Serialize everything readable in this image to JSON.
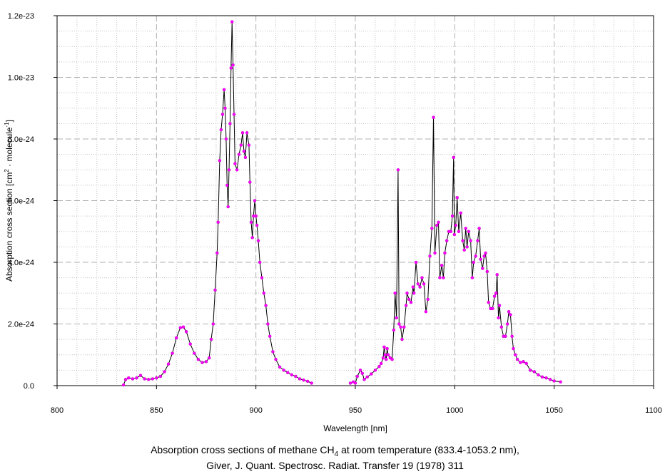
{
  "chart_data": {
    "type": "line",
    "xlabel": "Wavelength [nm]",
    "ylabel": "Absorption cross section [cm",
    "ylabel_sup1": "2",
    "ylabel_mid": " · molecule",
    "ylabel_sup2": "-1",
    "ylabel_end": "]",
    "xlim": [
      800,
      1100
    ],
    "ylim": [
      0,
      1.2e-23
    ],
    "xticks": [
      "800",
      "850",
      "900",
      "950",
      "1000",
      "1050",
      "1100"
    ],
    "yticks": [
      "0.0",
      "2.0e-24",
      "4.0e-24",
      "6.0e-24",
      "8.0e-24",
      "1.0e-23",
      "1.2e-23"
    ],
    "grid": true,
    "line_color": "#000000",
    "marker_color": "#ff00ff",
    "series": [
      {
        "segments": [
          [
            [
              833.4,
              2e-26
            ],
            [
              834.5,
              2e-25
            ],
            [
              836,
              2.5e-25
            ],
            [
              838,
              2.2e-25
            ],
            [
              840,
              2.5e-25
            ],
            [
              842,
              3.3e-25
            ],
            [
              844,
              2.2e-25
            ],
            [
              846,
              2e-25
            ],
            [
              848,
              2.2e-25
            ],
            [
              850,
              2.5e-25
            ],
            [
              852,
              3e-25
            ],
            [
              854,
              4.5e-25
            ],
            [
              856,
              7e-25
            ],
            [
              858,
              1.05e-24
            ],
            [
              860,
              1.55e-24
            ],
            [
              862,
              1.88e-24
            ],
            [
              863.5,
              1.9e-24
            ],
            [
              865,
              1.75e-24
            ],
            [
              867,
              1.35e-24
            ],
            [
              869,
              1.05e-24
            ],
            [
              871,
              8.5e-25
            ],
            [
              873,
              7.5e-25
            ],
            [
              875,
              7.8e-25
            ],
            [
              876.5,
              9e-25
            ],
            [
              877.5,
              1.5e-24
            ],
            [
              878.5,
              2e-24
            ],
            [
              879.5,
              3.1e-24
            ],
            [
              880.5,
              4.3e-24
            ],
            [
              881,
              5.3e-24
            ],
            [
              881.8,
              7.3e-24
            ],
            [
              882.5,
              8.3e-24
            ],
            [
              883.2,
              8.8e-24
            ],
            [
              884,
              9.6e-24
            ],
            [
              884.5,
              9e-24
            ],
            [
              885,
              8e-24
            ],
            [
              885.5,
              6.5e-24
            ],
            [
              886,
              5.8e-24
            ],
            [
              886.5,
              7e-24
            ],
            [
              887,
              8.5e-24
            ],
            [
              887.5,
              1.03e-23
            ],
            [
              888,
              1.18e-23
            ],
            [
              888.5,
              1.04e-23
            ],
            [
              889,
              8.8e-24
            ],
            [
              889.5,
              7.2e-24
            ],
            [
              890.5,
              7e-24
            ],
            [
              891.5,
              7.5e-24
            ],
            [
              892.5,
              7.8e-24
            ],
            [
              893.3,
              8.2e-24
            ],
            [
              894,
              7.6e-24
            ],
            [
              894.7,
              7.4e-24
            ],
            [
              895.5,
              8.2e-24
            ],
            [
              896.5,
              7.8e-24
            ],
            [
              897,
              6.6e-24
            ],
            [
              897.6,
              5.3e-24
            ],
            [
              898.2,
              4.8e-24
            ],
            [
              898.8,
              5.5e-24
            ],
            [
              899.4,
              6e-24
            ],
            [
              900,
              5.5e-24
            ],
            [
              900.5,
              5.2e-24
            ],
            [
              901.2,
              4.7e-24
            ],
            [
              902,
              4e-24
            ],
            [
              903,
              3.5e-24
            ],
            [
              904,
              3e-24
            ],
            [
              905,
              2.6e-24
            ],
            [
              906,
              2e-24
            ],
            [
              907,
              1.6e-24
            ],
            [
              908.5,
              1.1e-24
            ],
            [
              910,
              8.5e-25
            ],
            [
              912,
              6e-25
            ],
            [
              914,
              5e-25
            ],
            [
              916,
              4.2e-25
            ],
            [
              918,
              3.5e-25
            ],
            [
              920,
              3e-25
            ],
            [
              922,
              2.2e-25
            ],
            [
              924,
              1.8e-25
            ],
            [
              926,
              1.4e-25
            ],
            [
              928,
              8e-26
            ]
          ],
          [
            [
              947.5,
              8e-26
            ],
            [
              949,
              1.2e-25
            ],
            [
              950,
              8e-26
            ],
            [
              951,
              3e-25
            ],
            [
              952.5,
              5e-25
            ],
            [
              953.5,
              4e-25
            ],
            [
              954.5,
              2e-25
            ],
            [
              956,
              2.8e-25
            ],
            [
              958,
              3.8e-25
            ],
            [
              960,
              5e-25
            ],
            [
              962,
              6.2e-25
            ],
            [
              963,
              7.2e-25
            ],
            [
              964,
              9e-25
            ],
            [
              964.5,
              1.25e-24
            ],
            [
              965,
              1e-24
            ],
            [
              965.5,
              8.5e-25
            ],
            [
              966,
              1.2e-24
            ],
            [
              966.5,
              1e-24
            ],
            [
              967.5,
              9e-25
            ],
            [
              968.5,
              8.5e-25
            ],
            [
              969.3,
              1.8e-24
            ],
            [
              970,
              3e-24
            ],
            [
              970.7,
              2.2e-24
            ],
            [
              971.5,
              7e-24
            ],
            [
              972,
              2e-24
            ],
            [
              972.8,
              1.9e-24
            ],
            [
              973.5,
              1.5e-24
            ],
            [
              974.5,
              1.9e-24
            ],
            [
              975.5,
              2.6e-24
            ],
            [
              976,
              3e-24
            ],
            [
              977,
              2.8e-24
            ],
            [
              978,
              2.7e-24
            ],
            [
              979,
              3.2e-24
            ],
            [
              979.5,
              3e-24
            ],
            [
              980.5,
              4e-24
            ],
            [
              981.5,
              3.3e-24
            ],
            [
              982.5,
              3.2e-24
            ],
            [
              983.5,
              3.5e-24
            ],
            [
              984.5,
              3.3e-24
            ],
            [
              985.5,
              2.4e-24
            ],
            [
              986.5,
              2.8e-24
            ],
            [
              987.5,
              4.2e-24
            ],
            [
              988.5,
              5.1e-24
            ],
            [
              989.3,
              8.7e-24
            ],
            [
              990,
              4.3e-24
            ],
            [
              991,
              5.2e-24
            ],
            [
              991.8,
              5.3e-24
            ],
            [
              992.5,
              3.5e-24
            ],
            [
              993.5,
              3.9e-24
            ],
            [
              994.3,
              3.5e-24
            ],
            [
              995,
              4.3e-24
            ],
            [
              996,
              4.7e-24
            ],
            [
              997,
              5e-24
            ],
            [
              998,
              5e-24
            ],
            [
              998.8,
              5.5e-24
            ],
            [
              999.4,
              7.4e-24
            ],
            [
              999.8,
              4.9e-24
            ],
            [
              1000.5,
              5.2e-24
            ],
            [
              1001.2,
              6.1e-24
            ],
            [
              1002,
              5e-24
            ],
            [
              1003,
              5.6e-24
            ],
            [
              1004,
              4.7e-24
            ],
            [
              1004.8,
              4.4e-24
            ],
            [
              1005.5,
              5.1e-24
            ],
            [
              1006.2,
              4.5e-24
            ],
            [
              1007,
              5e-24
            ],
            [
              1008,
              4.7e-24
            ],
            [
              1008.8,
              3.5e-24
            ],
            [
              1009.5,
              4e-24
            ],
            [
              1010.5,
              4.2e-24
            ],
            [
              1011.5,
              4.7e-24
            ],
            [
              1012.3,
              5.1e-24
            ],
            [
              1013,
              4.1e-24
            ],
            [
              1014,
              3.8e-24
            ],
            [
              1014.8,
              4.2e-24
            ],
            [
              1015.5,
              4.3e-24
            ],
            [
              1016.3,
              3.7e-24
            ],
            [
              1017,
              2.7e-24
            ],
            [
              1018,
              2.5e-24
            ],
            [
              1019,
              2.5e-24
            ],
            [
              1020,
              2.9e-24
            ],
            [
              1020.8,
              3e-24
            ],
            [
              1021.3,
              3.6e-24
            ],
            [
              1022,
              2.2e-24
            ],
            [
              1022.5,
              2.6e-24
            ],
            [
              1023.5,
              1.9e-24
            ],
            [
              1024.5,
              1.6e-24
            ],
            [
              1025.5,
              1.6e-24
            ],
            [
              1026.5,
              2e-24
            ],
            [
              1027.2,
              2.4e-24
            ],
            [
              1028,
              2.3e-24
            ],
            [
              1028.8,
              1.6e-24
            ],
            [
              1029.5,
              1.2e-24
            ],
            [
              1030.5,
              1e-24
            ],
            [
              1031.5,
              8.5e-25
            ],
            [
              1033,
              7.5e-25
            ],
            [
              1034.5,
              7.8e-25
            ],
            [
              1036,
              7.2e-25
            ],
            [
              1038,
              5e-25
            ],
            [
              1040,
              4.5e-25
            ],
            [
              1042,
              3.5e-25
            ],
            [
              1044,
              2.8e-25
            ],
            [
              1046,
              2.5e-25
            ],
            [
              1048,
              2e-25
            ],
            [
              1050,
              1.5e-25
            ],
            [
              1053.2,
              1.2e-25
            ]
          ]
        ]
      }
    ]
  },
  "caption": {
    "line1_before": "Absorption cross sections of methane CH",
    "line1_sub": "4",
    "line1_after": " at room temperature (833.4-1053.2 nm),",
    "line2": "Giver, J. Quant. Spectrosc. Radiat. Transfer 19 (1978) 311"
  }
}
